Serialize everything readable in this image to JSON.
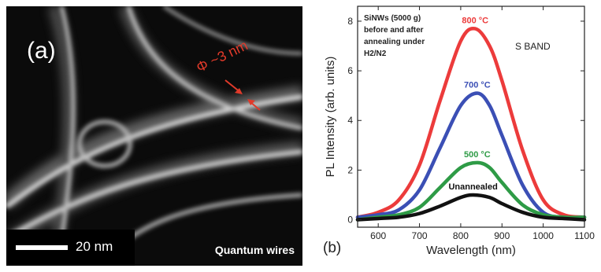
{
  "panel_a": {
    "label": "(a)",
    "scale_bar": "20 nm",
    "caption": "Quantum wires",
    "diameter_annotation": "Φ ~3 nm",
    "annotation_color": "#e03a2a"
  },
  "panel_b": {
    "label": "(b)"
  },
  "chart_data": {
    "type": "line",
    "xlabel": "Wavelength (nm)",
    "ylabel": "PL Intensity (arb. units)",
    "xlim": [
      550,
      1100
    ],
    "ylim": [
      -0.3,
      8.6
    ],
    "xticks": [
      "600",
      "700",
      "800",
      "900",
      "1000",
      "1100"
    ],
    "yticks": [
      "0",
      "2",
      "4",
      "6",
      "8"
    ],
    "annotation_lines": [
      "SiNWs (5000 g)",
      "before and after",
      "annealing under",
      "H2/N2"
    ],
    "band_label": "S BAND",
    "series": [
      {
        "name": "800 °C",
        "color": "#ec3b3b",
        "peak_x": 835,
        "peak_y": 7.7,
        "x": [
          550,
          600,
          650,
          700,
          750,
          800,
          835,
          870,
          900,
          950,
          1000,
          1050,
          1100
        ],
        "y": [
          0.1,
          0.3,
          0.8,
          2.2,
          4.8,
          7.2,
          7.7,
          7.0,
          5.6,
          2.8,
          0.8,
          0.2,
          0.1
        ]
      },
      {
        "name": "700 °C",
        "color": "#3b4fb5",
        "peak_x": 840,
        "peak_y": 5.1,
        "x": [
          550,
          600,
          650,
          700,
          750,
          800,
          840,
          870,
          900,
          950,
          1000,
          1050,
          1100
        ],
        "y": [
          0.1,
          0.2,
          0.4,
          1.2,
          2.9,
          4.6,
          5.1,
          4.6,
          3.4,
          1.4,
          0.3,
          0.1,
          0.1
        ]
      },
      {
        "name": "500 °C",
        "color": "#2e9b46",
        "peak_x": 840,
        "peak_y": 2.3,
        "x": [
          550,
          600,
          650,
          700,
          750,
          800,
          840,
          870,
          900,
          950,
          1000,
          1050,
          1100
        ],
        "y": [
          0.0,
          0.1,
          0.2,
          0.5,
          1.3,
          2.1,
          2.3,
          2.1,
          1.5,
          0.6,
          0.2,
          0.1,
          0.1
        ]
      },
      {
        "name": "Unannealed",
        "color": "#111111",
        "peak_x": 830,
        "peak_y": 1.0,
        "x": [
          550,
          600,
          650,
          700,
          750,
          800,
          830,
          870,
          900,
          950,
          1000,
          1050,
          1100
        ],
        "y": [
          0.0,
          0.05,
          0.1,
          0.25,
          0.55,
          0.9,
          1.0,
          0.9,
          0.65,
          0.3,
          0.1,
          0.05,
          0.0
        ]
      }
    ]
  }
}
